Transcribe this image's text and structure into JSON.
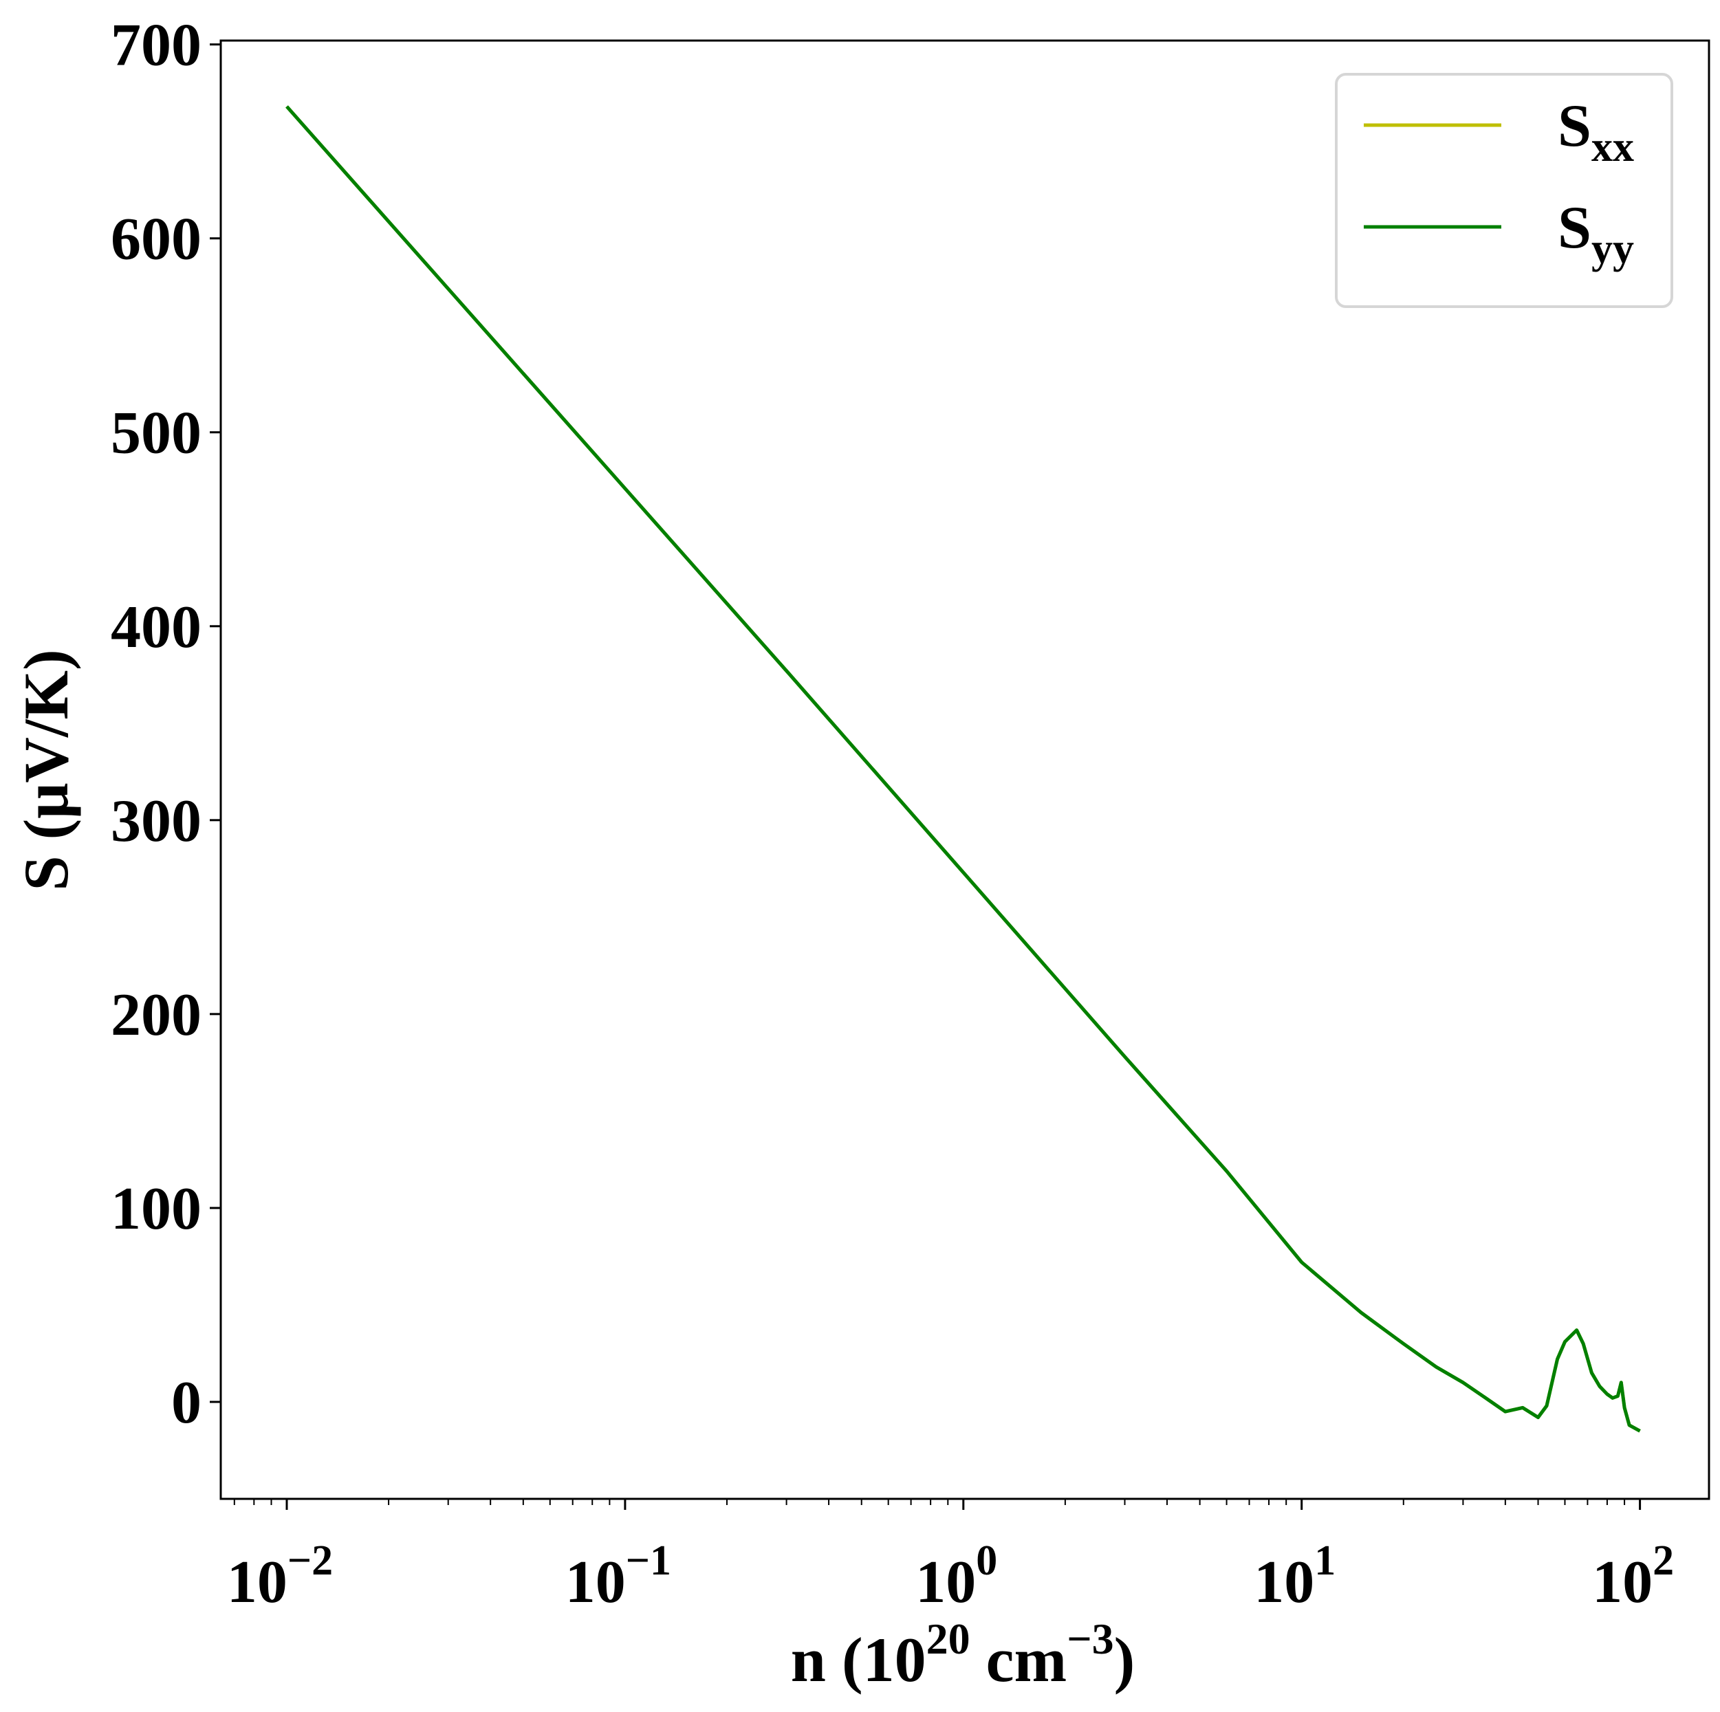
{
  "chart_data": {
    "type": "line",
    "title": "",
    "xlabel": {
      "base": "n (10",
      "exp": "20",
      "mid": " cm",
      "exp2": "−3",
      "end": ")"
    },
    "ylabel": "S (μV/K)",
    "xscale": "log",
    "xlim": [
      0.00638,
      160
    ],
    "ylim": [
      -50,
      702
    ],
    "x_ticks": [
      {
        "value": 0.01,
        "base": "10",
        "exp": "−2"
      },
      {
        "value": 0.1,
        "base": "10",
        "exp": "−1"
      },
      {
        "value": 1,
        "base": "10",
        "exp": "0"
      },
      {
        "value": 10,
        "base": "10",
        "exp": "1"
      },
      {
        "value": 100,
        "base": "10",
        "exp": "2"
      }
    ],
    "y_ticks": [
      {
        "value": 0,
        "label": "0"
      },
      {
        "value": 100,
        "label": "100"
      },
      {
        "value": 200,
        "label": "200"
      },
      {
        "value": 300,
        "label": "300"
      },
      {
        "value": 400,
        "label": "400"
      },
      {
        "value": 500,
        "label": "500"
      },
      {
        "value": 600,
        "label": "600"
      },
      {
        "value": 700,
        "label": "700"
      }
    ],
    "grid": false,
    "legend_position": "top-right",
    "x": [
      0.01,
      0.03,
      0.1,
      0.3,
      1,
      3,
      6,
      10,
      15,
      20,
      25,
      30,
      35,
      40,
      45,
      50,
      53,
      57,
      60,
      65,
      68,
      72,
      76,
      80,
      83,
      86,
      88,
      90,
      93,
      100
    ],
    "series": [
      {
        "name": "S",
        "sub": "xx",
        "color": "#bfbf00",
        "values": [
          668,
          574,
          471,
          377,
          273,
          178,
          119,
          72,
          46,
          30,
          18,
          10,
          2,
          -5,
          -3,
          -8,
          -2,
          22,
          31,
          37,
          30,
          15,
          8,
          4,
          2,
          3,
          10,
          -3,
          -12,
          -15
        ]
      },
      {
        "name": "S",
        "sub": "yy",
        "color": "#008000",
        "values": [
          668,
          574,
          471,
          377,
          273,
          178,
          119,
          72,
          46,
          30,
          18,
          10,
          2,
          -5,
          -3,
          -8,
          -2,
          22,
          31,
          37,
          30,
          15,
          8,
          4,
          2,
          3,
          10,
          -3,
          -12,
          -15
        ]
      }
    ]
  }
}
